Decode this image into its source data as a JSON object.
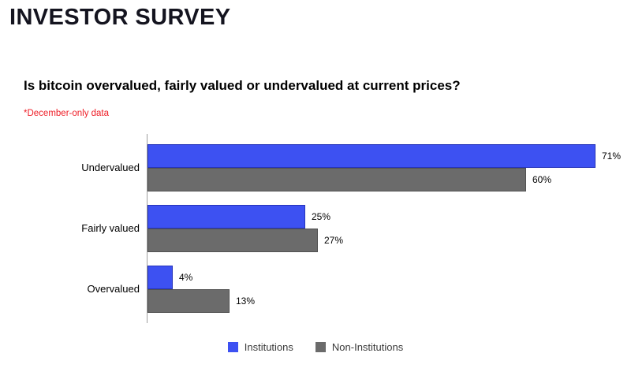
{
  "header": {
    "title": "INVESTOR SURVEY"
  },
  "question": "Is bitcoin overvalued, fairly valued or undervalued at current prices?",
  "footnote": "*December-only data",
  "colors": {
    "institutions_blue": "#3D51F2",
    "non_institutions_gray": "#6B6B6B",
    "footnote_red": "#EE1C25",
    "title_dark": "#14141F",
    "axis_gray": "#9E9E9E"
  },
  "legend": [
    {
      "label": "Institutions",
      "color": "#3D51F2"
    },
    {
      "label": "Non-Institutions",
      "color": "#6B6B6B"
    }
  ],
  "chart_data": {
    "type": "bar",
    "orientation": "horizontal",
    "title": "Is bitcoin overvalued, fairly valued or undervalued at current prices?",
    "categories": [
      "Undervalued",
      "Fairly valued",
      "Overvalued"
    ],
    "series": [
      {
        "name": "Institutions",
        "color": "#3D51F2",
        "values": [
          71,
          25,
          4
        ]
      },
      {
        "name": "Non-Institutions",
        "color": "#6B6B6B",
        "values": [
          60,
          27,
          13
        ]
      }
    ],
    "value_suffix": "%",
    "xlim": [
      0,
      75
    ],
    "xlabel": "",
    "ylabel": "",
    "grid": false,
    "legend_position": "bottom"
  }
}
